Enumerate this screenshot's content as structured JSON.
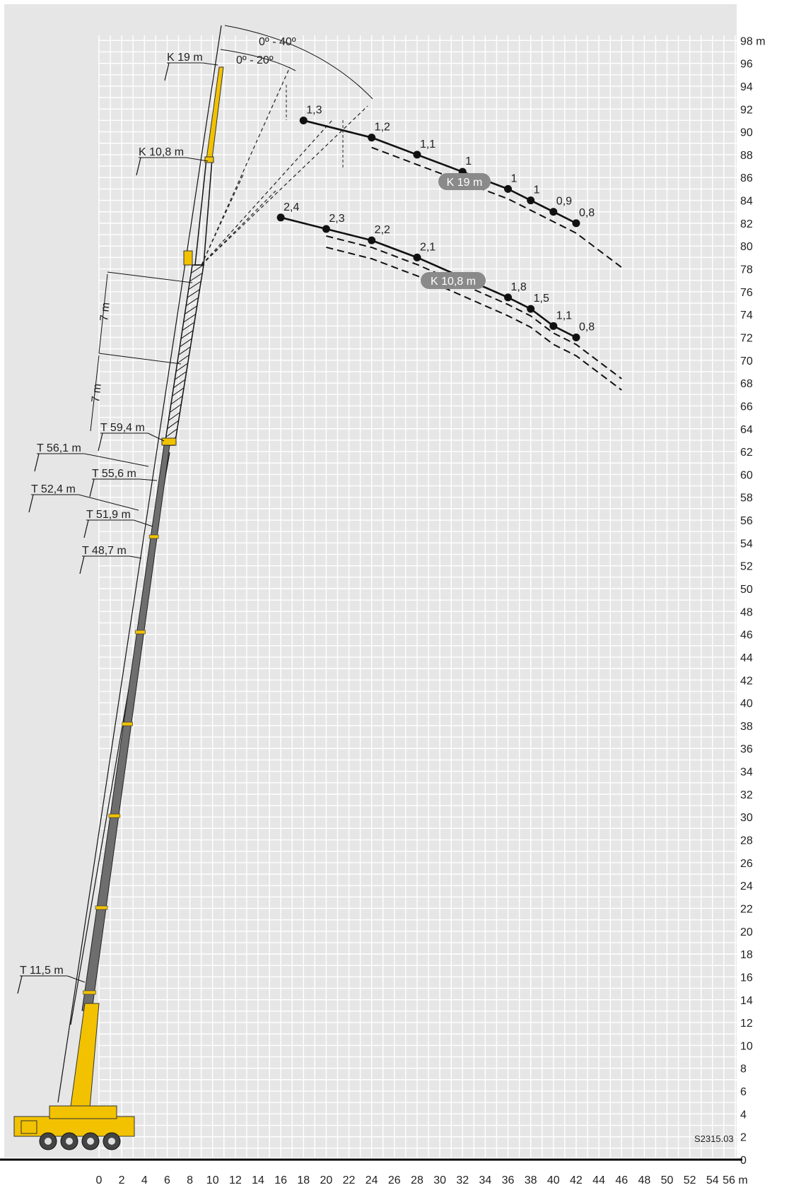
{
  "drawing_code": "S2315.03",
  "x_axis": {
    "ticks": [
      "0",
      "2",
      "4",
      "6",
      "8",
      "10",
      "12",
      "14",
      "16",
      "18",
      "20",
      "22",
      "24",
      "26",
      "28",
      "30",
      "32",
      "34",
      "36",
      "38",
      "40",
      "42",
      "44",
      "46",
      "48",
      "50",
      "52",
      "54",
      "56 m"
    ]
  },
  "y_axis": {
    "ticks": [
      "0",
      "2",
      "4",
      "6",
      "8",
      "10",
      "12",
      "14",
      "16",
      "18",
      "20",
      "22",
      "24",
      "26",
      "28",
      "30",
      "32",
      "34",
      "36",
      "38",
      "40",
      "42",
      "44",
      "46",
      "48",
      "50",
      "52",
      "54",
      "56",
      "58",
      "60",
      "62",
      "64",
      "66",
      "68",
      "70",
      "72",
      "74",
      "76",
      "78",
      "80",
      "82",
      "84",
      "86",
      "88",
      "90",
      "92",
      "94",
      "96",
      "98 m"
    ]
  },
  "angles": {
    "outer": "0º - 40º",
    "inner": "0º - 20º"
  },
  "boom_labels": {
    "k19": "K 19 m",
    "k108": "K 10,8 m",
    "t594": "T 59,4 m",
    "t561": "T 56,1 m",
    "t556": "T 55,6 m",
    "t524": "T 52,4 m",
    "t519": "T 51,9 m",
    "t487": "T 48,7 m",
    "t115": "T 11,5 m",
    "seg7a": "7 m",
    "seg7b": "7 m"
  },
  "curves": {
    "k19": {
      "pill": "K 19 m",
      "points": [
        {
          "x": 18,
          "y": 91,
          "load": "1,3"
        },
        {
          "x": 24,
          "y": 89.5,
          "load": "1,2"
        },
        {
          "x": 28,
          "y": 88,
          "load": "1,1"
        },
        {
          "x": 32,
          "y": 86.5,
          "load": "1"
        },
        {
          "x": 36,
          "y": 85,
          "load": "1"
        },
        {
          "x": 38,
          "y": 84,
          "load": "1"
        },
        {
          "x": 40,
          "y": 83,
          "load": "0,9"
        },
        {
          "x": 42,
          "y": 82,
          "load": "0,8"
        }
      ]
    },
    "k108": {
      "pill": "K 10,8 m",
      "points": [
        {
          "x": 16,
          "y": 82.5,
          "load": "2,4"
        },
        {
          "x": 20,
          "y": 81.5,
          "load": "2,3"
        },
        {
          "x": 24,
          "y": 80.5,
          "load": "2,2"
        },
        {
          "x": 28,
          "y": 79,
          "load": "2,1"
        },
        {
          "x": 36,
          "y": 75.5,
          "load": "1,8"
        },
        {
          "x": 38,
          "y": 74.5,
          "load": "1,5"
        },
        {
          "x": 40,
          "y": 73,
          "load": "1,1"
        },
        {
          "x": 42,
          "y": 72,
          "load": "0,8"
        }
      ]
    }
  },
  "colors": {
    "boom_yellow": "#f2c200",
    "boom_gray": "#6e6e6e",
    "pill": "#8a8a8a",
    "panel": "#e6e6e6",
    "grid": "#ffffff"
  }
}
